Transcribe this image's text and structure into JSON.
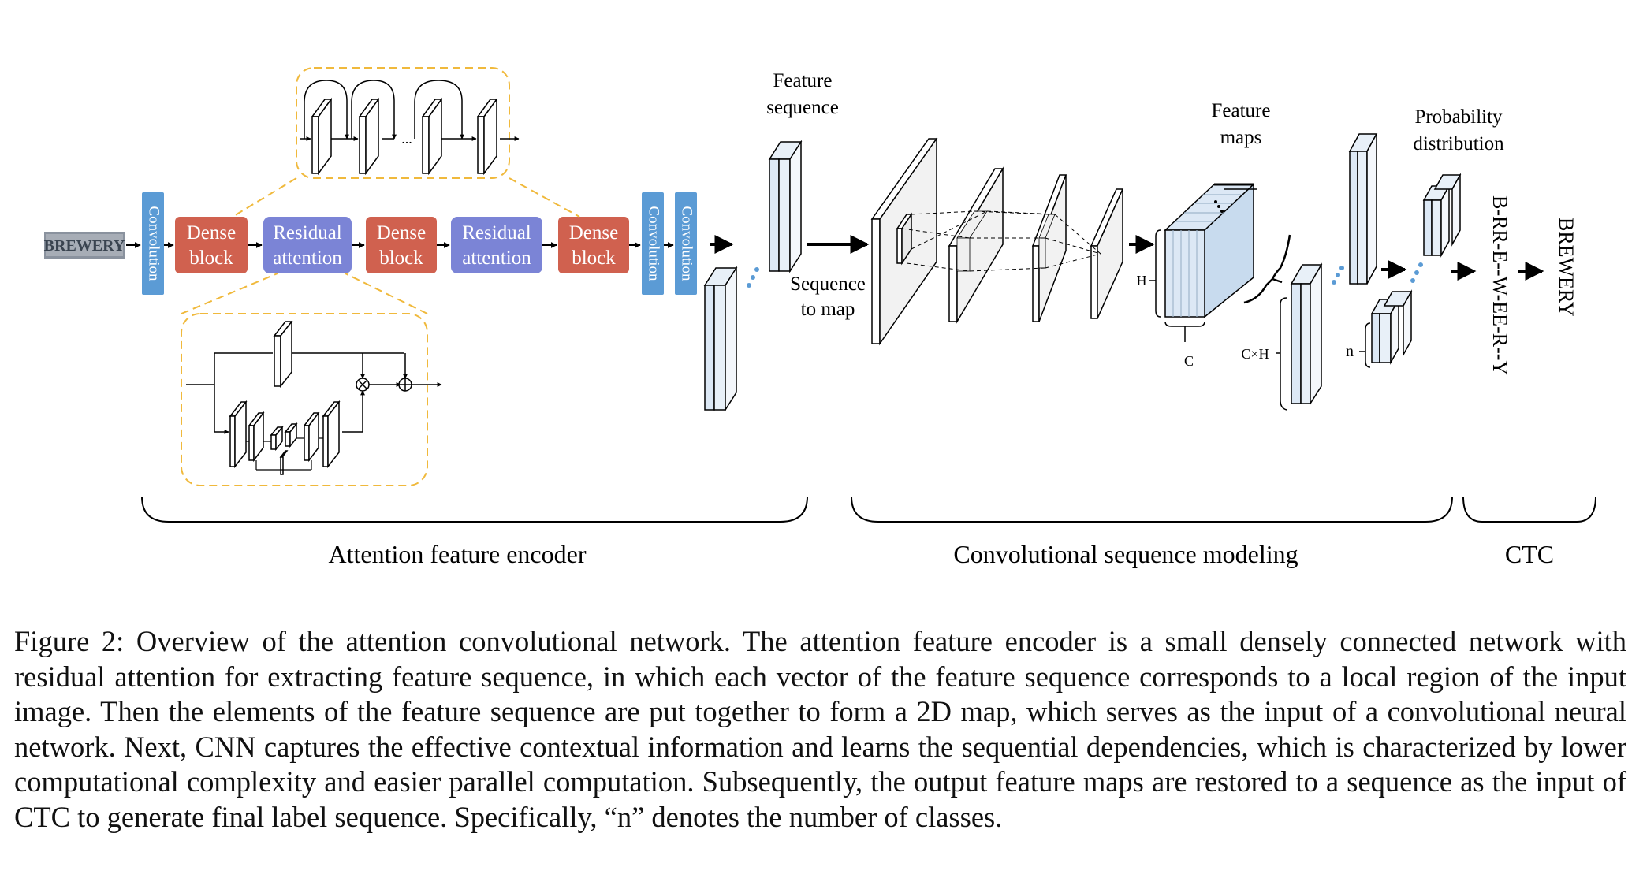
{
  "figure": {
    "input_image_text": "BREWERY",
    "encoder_blocks": {
      "conv1": "Convolution",
      "dense1": [
        "Dense",
        "block"
      ],
      "res1": [
        "Residual",
        "attention"
      ],
      "dense2": [
        "Dense",
        "block"
      ],
      "res2": [
        "Residual",
        "attention"
      ],
      "dense3": [
        "Dense",
        "block"
      ],
      "conv2": "Convolution",
      "conv3": "Convolution"
    },
    "dense_detail_dots": "...",
    "feature_sequence_label": [
      "Feature",
      "sequence"
    ],
    "sequence_to_map_label": [
      "Sequence",
      "to map"
    ],
    "feature_maps_label": [
      "Feature",
      "maps"
    ],
    "dim_h": "H",
    "dim_c": "C",
    "dim_cxh": "C×H",
    "dim_n": "n",
    "probability_label": [
      "Probability",
      "distribution"
    ],
    "ctc_raw_output": "B-RR-E--W-EE-R--Y",
    "ctc_final_output": "BREWERY",
    "section_labels": {
      "encoder": "Attention feature encoder",
      "conv_modeling": "Convolutional sequence modeling",
      "ctc": "CTC"
    },
    "colors": {
      "convolution_block": "#5b9bd5",
      "dense_block": "#d0614f",
      "residual_block": "#7b84d6",
      "callout_border": "#f0b93c",
      "cube_face": "#dce8f5"
    }
  },
  "caption": "Figure 2: Overview of the attention convolutional network. The attention feature encoder is a small densely connected network with residual attention for extracting feature sequence, in which each vector of the feature sequence corresponds to a local region of the input image. Then the elements of the feature sequence are put together to form a 2D map, which serves as the input of a convolutional neural network. Next, CNN captures the effective contextual information and learns the sequential dependencies, which is characterized by lower computational complexity and easier parallel computation. Subsequently, the output feature maps are restored to a sequence as the input of CTC to generate final label sequence. Specifically, “n” denotes the number of classes."
}
